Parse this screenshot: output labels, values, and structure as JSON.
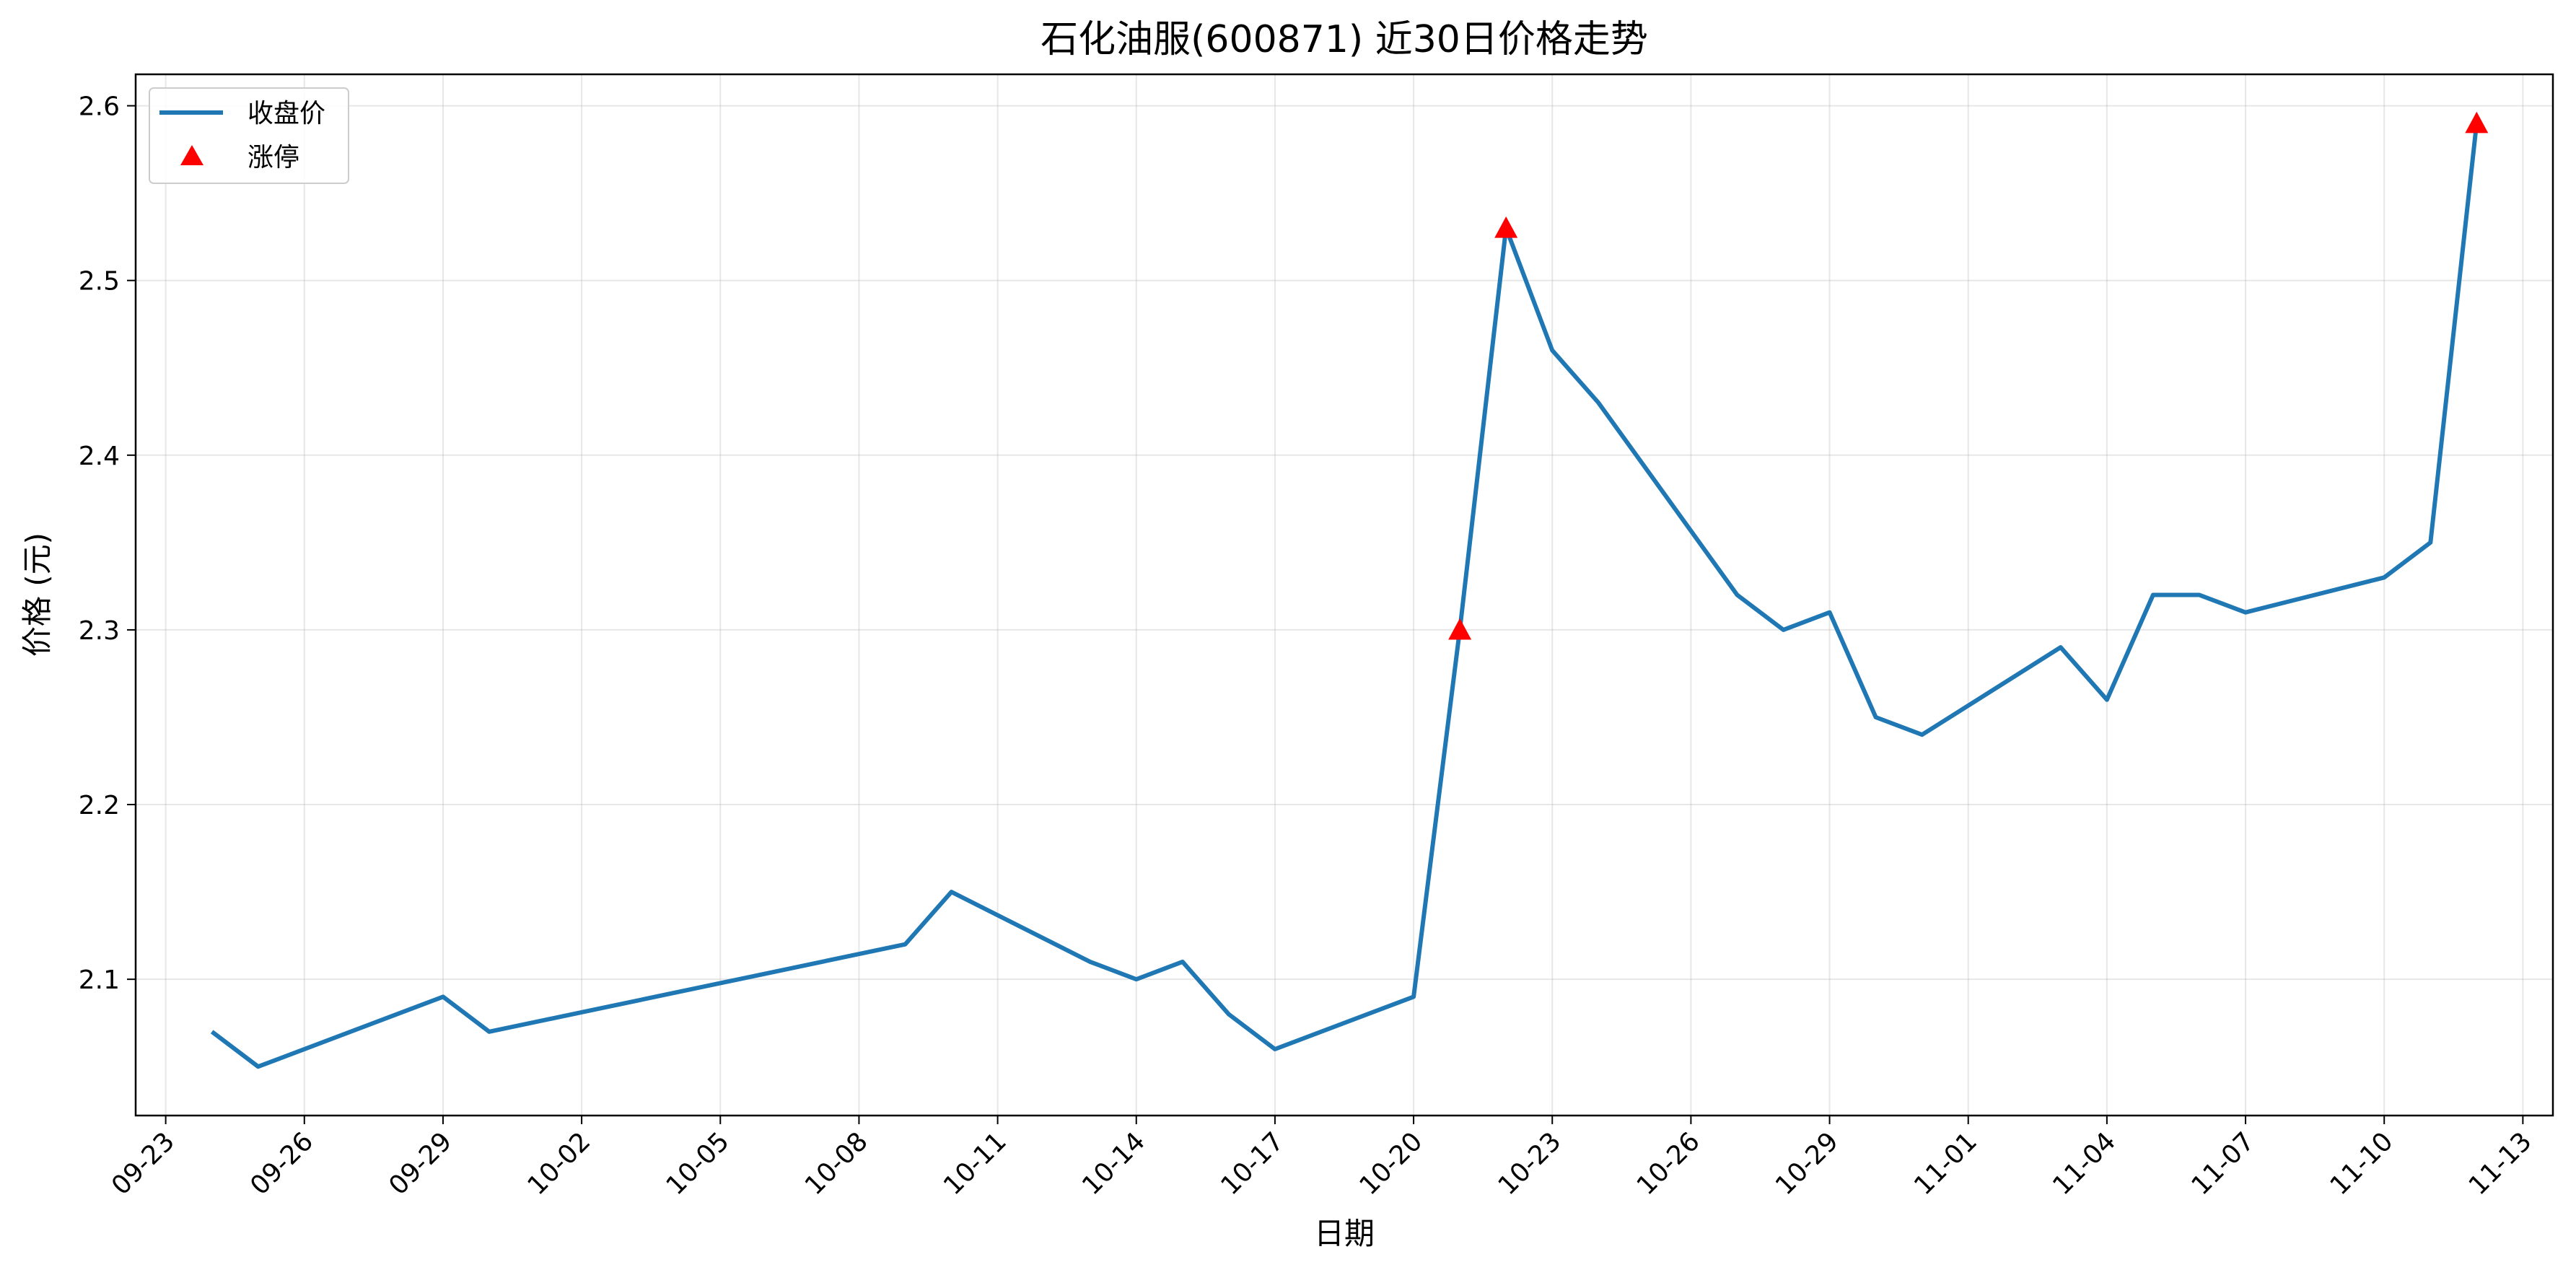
{
  "chart_data": {
    "type": "line",
    "title": "石化油服(600871) 近30日价格走势",
    "xlabel": "日期",
    "ylabel": "价格 (元)",
    "x_ticks": [
      "09-23",
      "09-26",
      "09-29",
      "10-02",
      "10-05",
      "10-08",
      "10-11",
      "10-14",
      "10-17",
      "10-20",
      "10-23",
      "10-26",
      "10-29",
      "11-01",
      "11-04",
      "11-07",
      "11-10",
      "11-13"
    ],
    "y_ticks": [
      "2.1",
      "2.2",
      "2.3",
      "2.4",
      "2.5",
      "2.6"
    ],
    "ylim": [
      2.022,
      2.618
    ],
    "xlim": [
      "09-22",
      "11-14"
    ],
    "grid": true,
    "legend_position": "upper-left",
    "series": [
      {
        "name": "收盘价",
        "kind": "line",
        "color": "#1f77b4",
        "x": [
          "09-24",
          "09-25",
          "09-29",
          "09-30",
          "10-09",
          "10-10",
          "10-13",
          "10-14",
          "10-15",
          "10-16",
          "10-17",
          "10-20",
          "10-21",
          "10-22",
          "10-23",
          "10-24",
          "10-27",
          "10-28",
          "10-29",
          "10-30",
          "10-31",
          "11-03",
          "11-04",
          "11-05",
          "11-06",
          "11-07",
          "11-10",
          "11-11",
          "11-12"
        ],
        "values": [
          2.07,
          2.05,
          2.09,
          2.07,
          2.12,
          2.15,
          2.11,
          2.1,
          2.11,
          2.08,
          2.06,
          2.09,
          2.3,
          2.53,
          2.46,
          2.43,
          2.32,
          2.3,
          2.31,
          2.25,
          2.24,
          2.29,
          2.26,
          2.32,
          2.32,
          2.31,
          2.33,
          2.35,
          2.59
        ]
      },
      {
        "name": "涨停",
        "kind": "scatter",
        "marker": "triangle",
        "color": "#ff0000",
        "x": [
          "10-21",
          "10-22",
          "11-12"
        ],
        "values": [
          2.3,
          2.53,
          2.59
        ]
      }
    ]
  }
}
